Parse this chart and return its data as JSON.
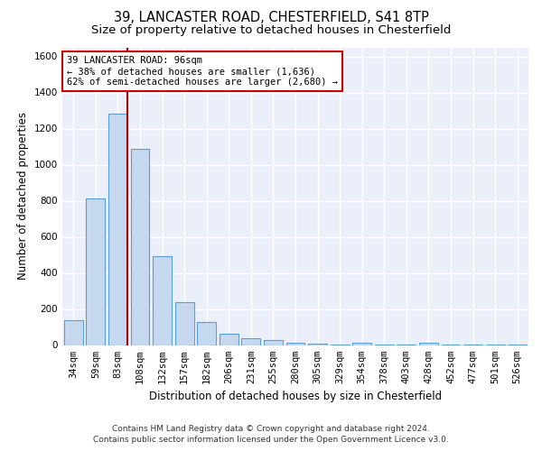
{
  "title_line1": "39, LANCASTER ROAD, CHESTERFIELD, S41 8TP",
  "title_line2": "Size of property relative to detached houses in Chesterfield",
  "xlabel": "Distribution of detached houses by size in Chesterfield",
  "ylabel": "Number of detached properties",
  "footnote_line1": "Contains HM Land Registry data © Crown copyright and database right 2024.",
  "footnote_line2": "Contains public sector information licensed under the Open Government Licence v3.0.",
  "bar_labels": [
    "34sqm",
    "59sqm",
    "83sqm",
    "108sqm",
    "132sqm",
    "157sqm",
    "182sqm",
    "206sqm",
    "231sqm",
    "255sqm",
    "280sqm",
    "305sqm",
    "329sqm",
    "354sqm",
    "378sqm",
    "403sqm",
    "428sqm",
    "452sqm",
    "477sqm",
    "501sqm",
    "526sqm"
  ],
  "bar_values": [
    140,
    815,
    1285,
    1090,
    495,
    238,
    128,
    65,
    38,
    28,
    15,
    10,
    5,
    15,
    3,
    2,
    15,
    2,
    2,
    2,
    2
  ],
  "bar_color": "#c5d8f0",
  "bar_edge_color": "#5a9fd4",
  "bar_edge_width": 0.8,
  "vline_color": "#aa0000",
  "annotation_text": "39 LANCASTER ROAD: 96sqm\n← 38% of detached houses are smaller (1,636)\n62% of semi-detached houses are larger (2,680) →",
  "annotation_box_color": "#cc0000",
  "annotation_bg": "#ffffff",
  "ylim": [
    0,
    1650
  ],
  "yticks": [
    0,
    200,
    400,
    600,
    800,
    1000,
    1200,
    1400,
    1600
  ],
  "background_color": "#eaeff9",
  "grid_color": "#ffffff",
  "title_fontsize": 10.5,
  "subtitle_fontsize": 9.5,
  "axis_label_fontsize": 8.5,
  "tick_fontsize": 7.5,
  "footnote_fontsize": 6.5
}
